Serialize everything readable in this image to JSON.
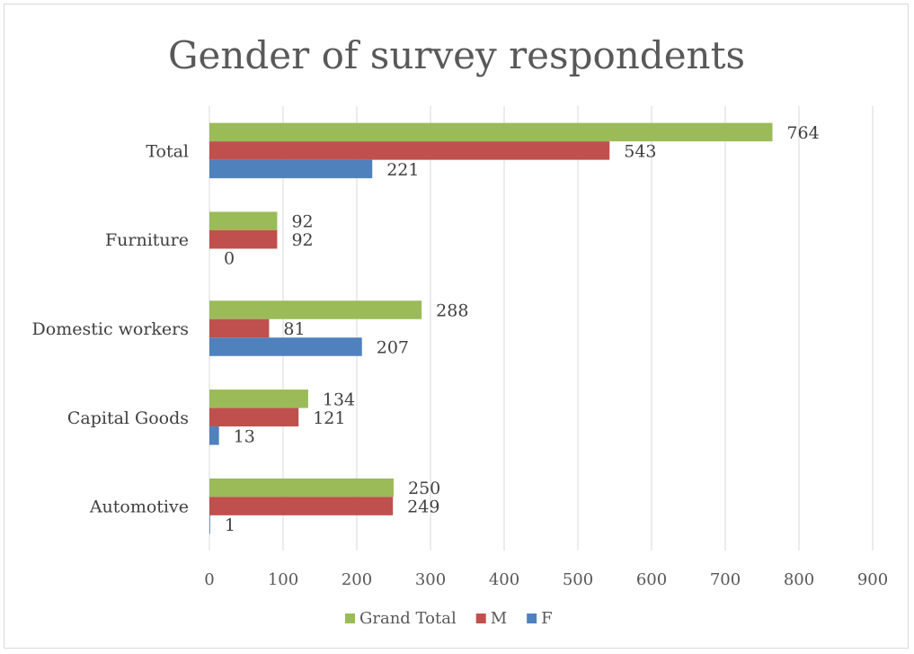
{
  "chart_data": {
    "type": "bar",
    "orientation": "horizontal",
    "title": "Gender of survey respondents",
    "categories": [
      "Automotive",
      "Capital Goods",
      "Domestic workers",
      "Furniture",
      "Total"
    ],
    "series": [
      {
        "name": "Grand Total",
        "color": "#9bbb59",
        "values": [
          250,
          134,
          288,
          92,
          764
        ]
      },
      {
        "name": "M",
        "color": "#c0504d",
        "values": [
          249,
          121,
          81,
          92,
          543
        ]
      },
      {
        "name": "F",
        "color": "#4f81bd",
        "values": [
          1,
          13,
          207,
          0,
          221
        ]
      }
    ],
    "xlim": [
      0,
      900
    ],
    "xticks": [
      "0",
      "100",
      "200",
      "300",
      "400",
      "500",
      "600",
      "700",
      "800",
      "900"
    ],
    "grid": true,
    "legend_position": "bottom"
  }
}
